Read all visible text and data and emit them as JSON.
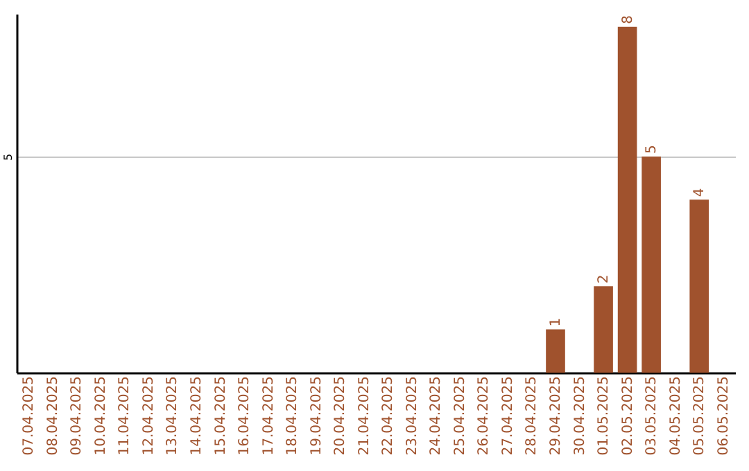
{
  "chart_data": {
    "type": "bar",
    "categories": [
      "07.04.2025",
      "08.04.2025",
      "09.04.2025",
      "10.04.2025",
      "11.04.2025",
      "12.04.2025",
      "13.04.2025",
      "14.04.2025",
      "15.04.2025",
      "16.04.2025",
      "17.04.2025",
      "18.04.2025",
      "19.04.2025",
      "20.04.2025",
      "21.04.2025",
      "22.04.2025",
      "23.04.2025",
      "24.04.2025",
      "25.04.2025",
      "26.04.2025",
      "27.04.2025",
      "28.04.2025",
      "29.04.2025",
      "30.04.2025",
      "01.05.2025",
      "02.05.2025",
      "03.05.2025",
      "04.05.2025",
      "05.05.2025",
      "06.05.2025"
    ],
    "values": [
      null,
      null,
      null,
      null,
      null,
      null,
      null,
      null,
      null,
      null,
      null,
      null,
      null,
      null,
      null,
      null,
      null,
      null,
      null,
      null,
      null,
      null,
      1,
      null,
      2,
      8,
      5,
      null,
      4,
      null
    ],
    "color": "#a0522d",
    "ylim": [
      0,
      8.3
    ],
    "yticks": [
      5
    ],
    "grid": "y",
    "data_labels": true
  }
}
